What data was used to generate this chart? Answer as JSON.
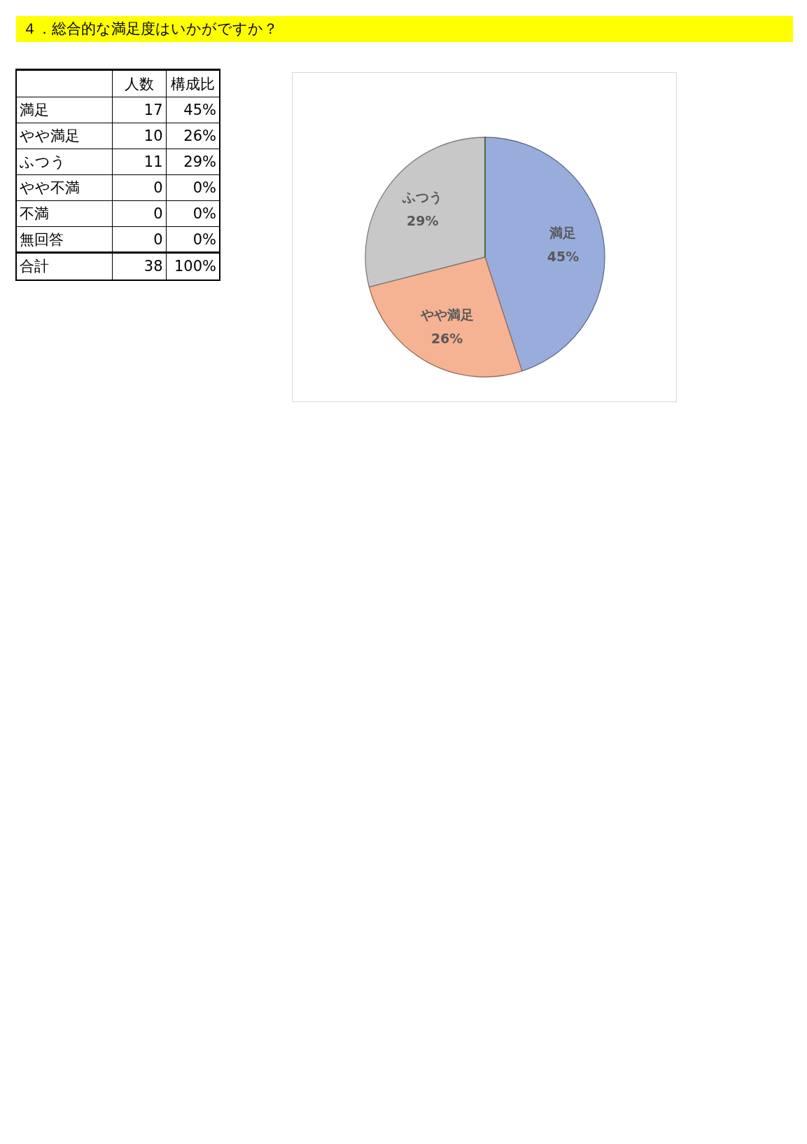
{
  "chart_data": [
    {
      "type": "other",
      "title": "４．総合的な満足度はいかがですか？",
      "categories": [
        "満足",
        "やや満足",
        "ふつう",
        "やや不満",
        "不満",
        "無回答",
        "合計"
      ],
      "series": [
        {
          "name": "人数",
          "values": [
            17,
            10,
            11,
            0,
            0,
            0,
            38
          ]
        },
        {
          "name": "構成比",
          "values": [
            45,
            26,
            29,
            0,
            0,
            0,
            100
          ],
          "value_labels": [
            "45%",
            "26%",
            "29%",
            "0%",
            "0%",
            "0%",
            "100%"
          ]
        }
      ],
      "data_labels": true
    },
    {
      "type": "pie",
      "categories": [
        "満足",
        "やや満足",
        "ふつう",
        null,
        null,
        null
      ],
      "values": [
        45,
        26,
        29,
        0,
        0,
        0
      ],
      "colors": [
        "#99addd",
        "#f6b393",
        "#c8c8c8",
        "#ffc000",
        "#5b9bd5",
        "#70ad47"
      ],
      "value_labels": [
        "45%",
        "26%",
        "29%",
        null,
        null,
        null
      ]
    }
  ]
}
